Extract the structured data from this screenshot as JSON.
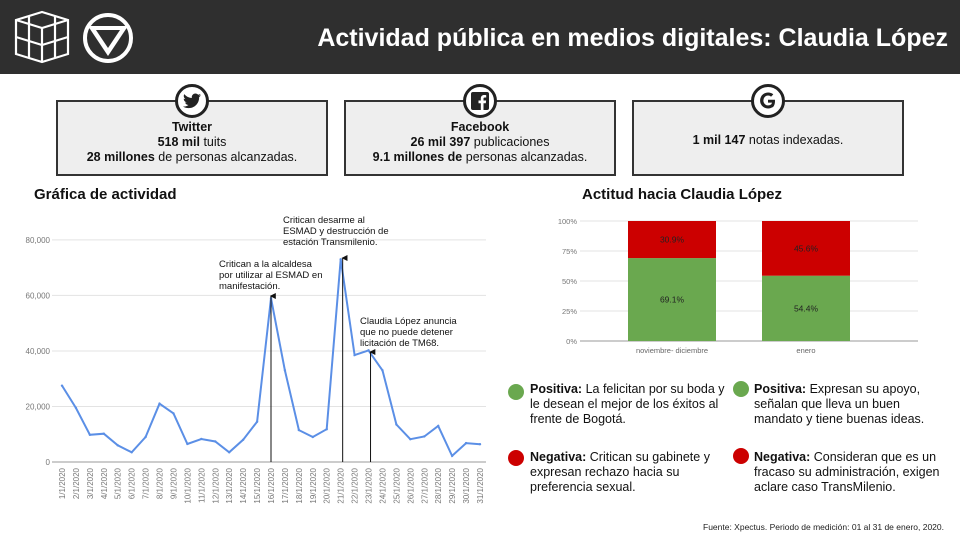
{
  "header": {
    "title": "Actividad pública en medios digitales: Claudia López"
  },
  "cards": {
    "twitter": {
      "icon": "twitter-icon",
      "title": "Twitter",
      "l1_bold": "518 mil",
      "l1_rest": " tuits",
      "l2_bold": "28 millones",
      "l2_rest": " de personas alcanzadas."
    },
    "facebook": {
      "icon": "facebook-icon",
      "title": "Facebook",
      "l1_bold": "26 mil 397",
      "l1_rest": " publicaciones",
      "l2_bold": "9.1 millones de",
      "l2_rest": " personas alcanzadas."
    },
    "google": {
      "icon": "google-icon",
      "l1_bold": "1 mil 147",
      "l1_rest": " notas indexadas."
    }
  },
  "sections": {
    "activity_title": "Gráfica de actividad",
    "attitude_title": "Actitud hacia Claudia López"
  },
  "annotations": {
    "a1": "Critican a la alcaldesa por utilizar al ESMAD en manifestación.",
    "a2": "Critican desarme al ESMAD y destrucción de estación Transmilenio.",
    "a3": "Claudia López anuncia que no puede detener licitación de TM68."
  },
  "attitudes": {
    "nov_pos_label": "Positiva:",
    "nov_pos_text": " La felicitan por su boda y le desean el mejor de los éxitos al frente de Bogotá.",
    "nov_neg_label": "Negativa:",
    "nov_neg_text": " Critican su gabinete y expresan rechazo hacia su preferencia sexual.",
    "ene_pos_label": "Positiva:",
    "ene_pos_text": " Expresan su apoyo, señalan que lleva un buen mandato y tiene buenas ideas.",
    "ene_neg_label": "Negativa:",
    "ene_neg_text": " Consideran que es un fracaso su administración, exigen aclare caso TransMilenio."
  },
  "source": "Fuente: Xpectus. Periodo de medición:  01 al 31 de enero, 2020.",
  "colors": {
    "line": "#5b8fe6",
    "positive": "#6aa84f",
    "negative": "#cc0000",
    "header": "#2f2f2f"
  },
  "chart_data": [
    {
      "type": "line",
      "x": [
        "1/1/2020",
        "2/1/2020",
        "3/1/2020",
        "4/1/2020",
        "5/1/2020",
        "6/1/2020",
        "7/1/2020",
        "8/1/2020",
        "9/1/2020",
        "10/1/2020",
        "11/1/2020",
        "12/1/2020",
        "13/1/2020",
        "14/1/2020",
        "15/1/2020",
        "16/1/2020",
        "17/1/2020",
        "18/1/2020",
        "19/1/2020",
        "20/1/2020",
        "21/1/2020",
        "22/1/2020",
        "23/1/2020",
        "24/1/2020",
        "25/1/2020",
        "26/1/2020",
        "27/1/2020",
        "28/1/2020",
        "29/1/2020",
        "30/1/2020",
        "31/1/2020"
      ],
      "series": [
        {
          "values": [
            27500,
            19500,
            9800,
            10200,
            6000,
            3500,
            9000,
            21000,
            17500,
            6500,
            8300,
            7400,
            3500,
            8000,
            14500,
            59000,
            33000,
            11500,
            9000,
            11800,
            73000,
            38500,
            40200,
            33000,
            13500,
            8200,
            9200,
            13000,
            2200,
            6800,
            6400
          ]
        }
      ],
      "y_ticks": [
        "0",
        "20,000",
        "40,000",
        "60,000",
        "80,000"
      ],
      "ylim": [
        0,
        85000
      ],
      "annotated_points": [
        15,
        20,
        22
      ]
    },
    {
      "type": "bar",
      "stacked": true,
      "categories": [
        "noviembre- diciembre",
        "enero"
      ],
      "series": [
        {
          "name": "positiva",
          "values": [
            69.1,
            54.4
          ],
          "labels": [
            "69.1%",
            "54.4%"
          ]
        },
        {
          "name": "negativa",
          "values": [
            30.9,
            45.6
          ],
          "labels": [
            "30.9%",
            "45.6%"
          ]
        }
      ],
      "y_ticks": [
        "0%",
        "25%",
        "50%",
        "75%",
        "100%"
      ],
      "ylim": [
        0,
        100
      ]
    }
  ]
}
